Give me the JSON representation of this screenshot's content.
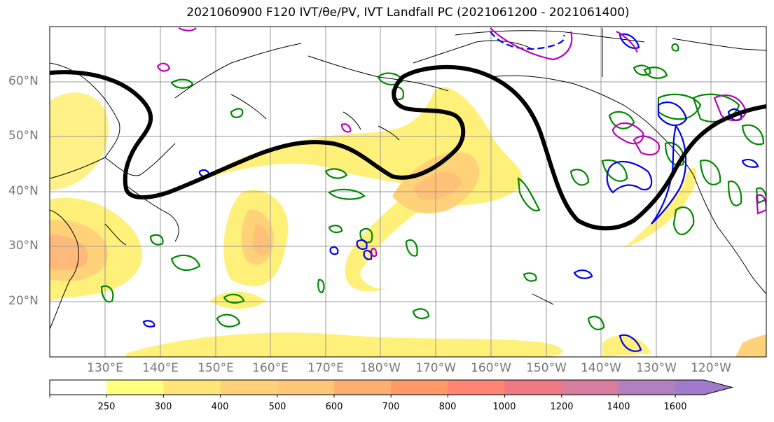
{
  "title": "2021060900 F120 IVT/θe/PV, IVT Landfall PC (2021061200 - 2021061400)",
  "lat_labels": [
    "60°N",
    "50°N",
    "40°N",
    "30°N",
    "20°N"
  ],
  "lon_labels": [
    "130°E",
    "140°E",
    "150°E",
    "160°E",
    "170°E",
    "180°W",
    "170°W",
    "160°W",
    "150°W",
    "140°W",
    "130°W",
    "120°W"
  ],
  "colorbar": {
    "ticks": [
      "250",
      "300",
      "400",
      "500",
      "600",
      "700",
      "800",
      "1000",
      "1200",
      "1400",
      "1600"
    ],
    "colors": [
      "#ffffff",
      "#ffff80",
      "#ffe57a",
      "#ffd27a",
      "#ffc878",
      "#ffb070",
      "#ff9a68",
      "#ff8575",
      "#ef7a85",
      "#d77e9e",
      "#b080c0",
      "#a07acb"
    ]
  },
  "contour_colors": {
    "ivt_pc": "#000000",
    "theta_e_solid": "#0000ee",
    "pv": "#bb00bb",
    "green": "#008800"
  }
}
